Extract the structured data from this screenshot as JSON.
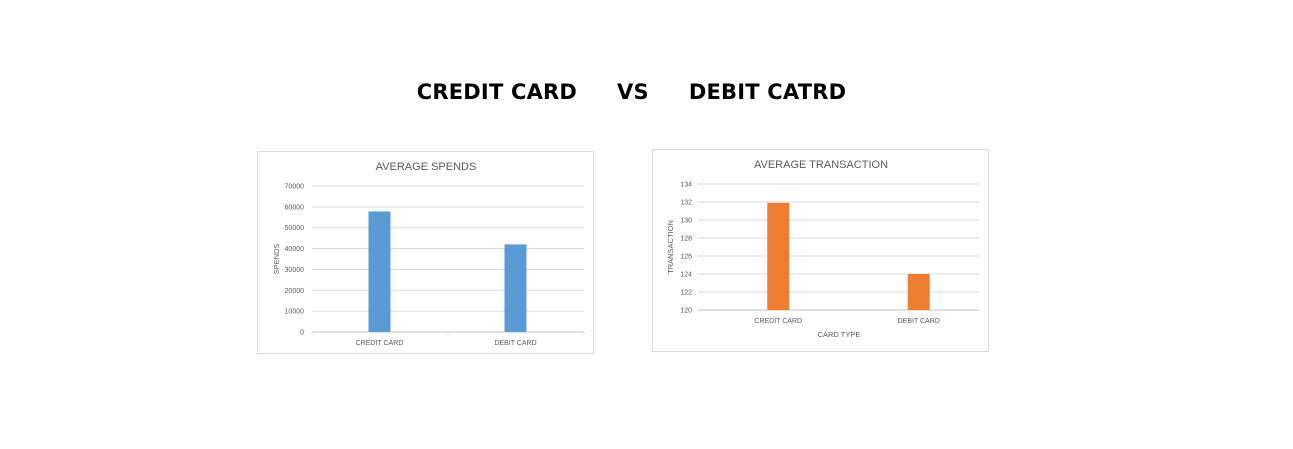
{
  "page": {
    "title_left": "CREDIT CARD",
    "title_mid": "VS",
    "title_right": "DEBIT CATRD"
  },
  "chart_data": [
    {
      "id": "spends",
      "type": "bar",
      "title": "AVERAGE SPENDS",
      "xlabel": "",
      "ylabel": "SPENDS",
      "categories": [
        "CREDIT CARD",
        "DEBIT CARD"
      ],
      "values": [
        57800,
        42000
      ],
      "ylim": [
        0,
        70000
      ],
      "yticks": [
        0,
        10000,
        20000,
        30000,
        40000,
        50000,
        60000,
        70000
      ],
      "grid": true,
      "color": "#5b9bd5"
    },
    {
      "id": "transaction",
      "type": "bar",
      "title": "AVERAGE TRANSACTION",
      "xlabel": "CARD TYPE",
      "ylabel": "TRANSACTION",
      "categories": [
        "CREDIT CARD",
        "DEBIT CARD"
      ],
      "values": [
        131.9,
        124
      ],
      "ylim": [
        120,
        134
      ],
      "yticks": [
        120,
        122,
        124,
        126,
        128,
        130,
        132,
        134
      ],
      "grid": true,
      "color": "#ed7d31"
    }
  ]
}
